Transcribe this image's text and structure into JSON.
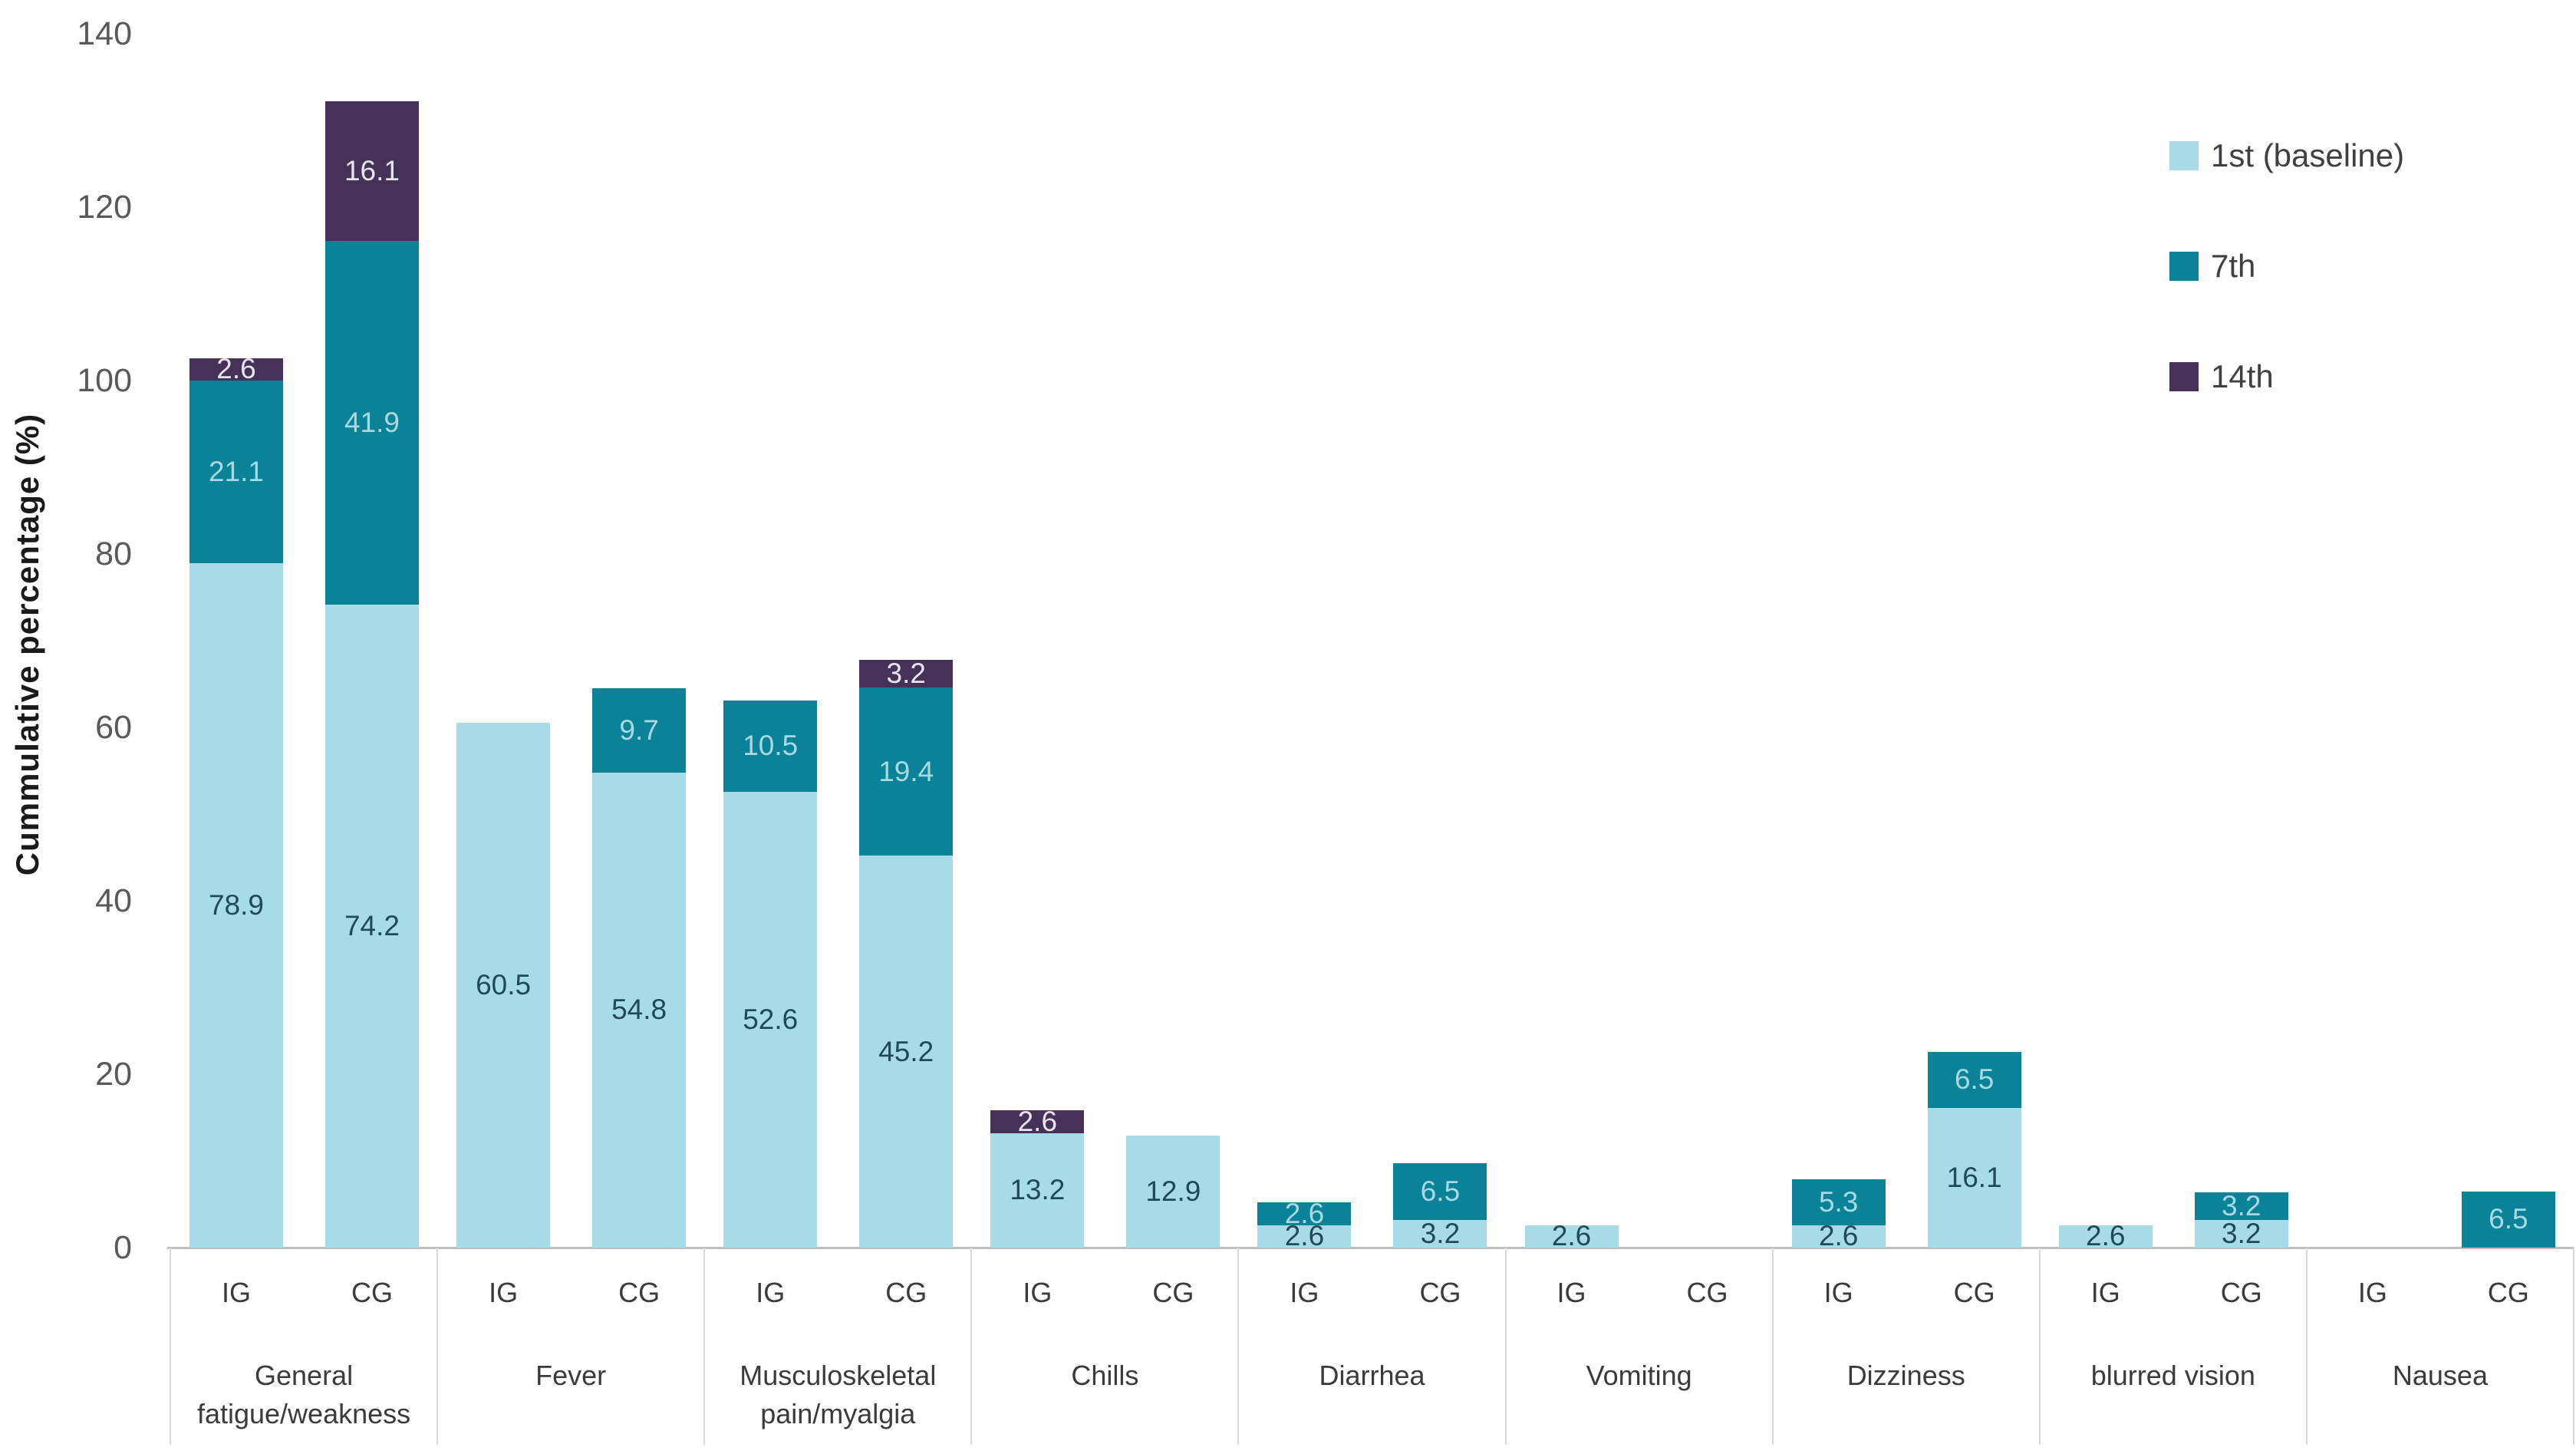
{
  "chart_data": {
    "type": "bar",
    "stacked": true,
    "title": "",
    "ylabel": "Cummulative percentage (%)",
    "xlabel": "",
    "ylim": [
      0,
      140
    ],
    "yticks": [
      0,
      20,
      40,
      60,
      80,
      100,
      120,
      140
    ],
    "grid": false,
    "legend_position": "top-right",
    "series_names": [
      "1st (baseline)",
      "7th",
      "14th"
    ],
    "series_colors": [
      "#A8DBE8",
      "#0A8398",
      "#463159"
    ],
    "value_label_colors": [
      "#20495A",
      "#A8D9E3",
      "#E8E4EF"
    ],
    "bar_labels": [
      "IG",
      "CG"
    ],
    "groups": [
      {
        "category": "General fatigue/weakness",
        "label_lines": [
          "General",
          "fatigue/weakness"
        ],
        "bars": [
          {
            "label": "IG",
            "values": [
              78.9,
              21.1,
              2.6
            ]
          },
          {
            "label": "CG",
            "values": [
              74.2,
              41.9,
              16.1
            ]
          }
        ]
      },
      {
        "category": "Fever",
        "label_lines": [
          "Fever"
        ],
        "bars": [
          {
            "label": "IG",
            "values": [
              60.5,
              0,
              0
            ]
          },
          {
            "label": "CG",
            "values": [
              54.8,
              9.7,
              0
            ]
          }
        ]
      },
      {
        "category": "Musculoskeletal pain/myalgia",
        "label_lines": [
          "Musculoskeletal",
          "pain/myalgia"
        ],
        "bars": [
          {
            "label": "IG",
            "values": [
              52.6,
              10.5,
              0
            ]
          },
          {
            "label": "CG",
            "values": [
              45.2,
              19.4,
              3.2
            ]
          }
        ]
      },
      {
        "category": "Chills",
        "label_lines": [
          "Chills"
        ],
        "bars": [
          {
            "label": "IG",
            "values": [
              13.2,
              0,
              2.6
            ]
          },
          {
            "label": "CG",
            "values": [
              12.9,
              0,
              0
            ]
          }
        ]
      },
      {
        "category": "Diarrhea",
        "label_lines": [
          "Diarrhea"
        ],
        "bars": [
          {
            "label": "IG",
            "values": [
              2.6,
              2.6,
              0
            ]
          },
          {
            "label": "CG",
            "values": [
              3.2,
              6.5,
              0
            ]
          }
        ]
      },
      {
        "category": "Vomiting",
        "label_lines": [
          "Vomiting"
        ],
        "bars": [
          {
            "label": "IG",
            "values": [
              2.6,
              0,
              0
            ]
          },
          {
            "label": "CG",
            "values": [
              0,
              0,
              0
            ]
          }
        ]
      },
      {
        "category": "Dizziness",
        "label_lines": [
          "Dizziness"
        ],
        "bars": [
          {
            "label": "IG",
            "values": [
              2.6,
              5.3,
              0
            ]
          },
          {
            "label": "CG",
            "values": [
              16.1,
              6.5,
              0
            ]
          }
        ]
      },
      {
        "category": "blurred vision",
        "label_lines": [
          "blurred vision"
        ],
        "bars": [
          {
            "label": "IG",
            "values": [
              2.6,
              0,
              0
            ]
          },
          {
            "label": "CG",
            "values": [
              3.2,
              3.2,
              0
            ]
          }
        ]
      },
      {
        "category": "Nausea",
        "label_lines": [
          "Nausea"
        ],
        "bars": [
          {
            "label": "IG",
            "values": [
              0,
              0,
              0
            ]
          },
          {
            "label": "CG",
            "values": [
              0,
              6.5,
              0
            ]
          }
        ]
      }
    ]
  },
  "colors": {
    "axis_line": "#BFBFBF",
    "divider": "#D9D9D9",
    "tick_text": "#595959",
    "label_text": "#3B3B3B",
    "legend_text": "#404040",
    "ylabel_text": "#1A1A1A"
  }
}
